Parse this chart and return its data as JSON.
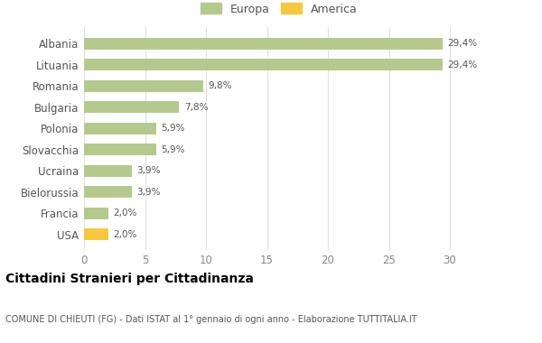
{
  "categories": [
    "Albania",
    "Lituania",
    "Romania",
    "Bulgaria",
    "Polonia",
    "Slovacchia",
    "Ucraina",
    "Bielorussia",
    "Francia",
    "USA"
  ],
  "values": [
    29.4,
    29.4,
    9.8,
    7.8,
    5.9,
    5.9,
    3.9,
    3.9,
    2.0,
    2.0
  ],
  "labels": [
    "29,4%",
    "29,4%",
    "9,8%",
    "7,8%",
    "5,9%",
    "5,9%",
    "3,9%",
    "3,9%",
    "2,0%",
    "2,0%"
  ],
  "colors": [
    "#b5c98e",
    "#b5c98e",
    "#b5c98e",
    "#b5c98e",
    "#b5c98e",
    "#b5c98e",
    "#b5c98e",
    "#b5c98e",
    "#b5c98e",
    "#f5c842"
  ],
  "legend_items": [
    {
      "label": "Europa",
      "color": "#b5c98e"
    },
    {
      "label": "America",
      "color": "#f5c842"
    }
  ],
  "xlim": [
    0,
    32
  ],
  "xticks": [
    0,
    5,
    10,
    15,
    20,
    25,
    30
  ],
  "title": "Cittadini Stranieri per Cittadinanza",
  "subtitle": "COMUNE DI CHIEUTI (FG) - Dati ISTAT al 1° gennaio di ogni anno - Elaborazione TUTTITALIA.IT",
  "bg_color": "#ffffff",
  "grid_color": "#e0e0e0",
  "bar_height": 0.55
}
